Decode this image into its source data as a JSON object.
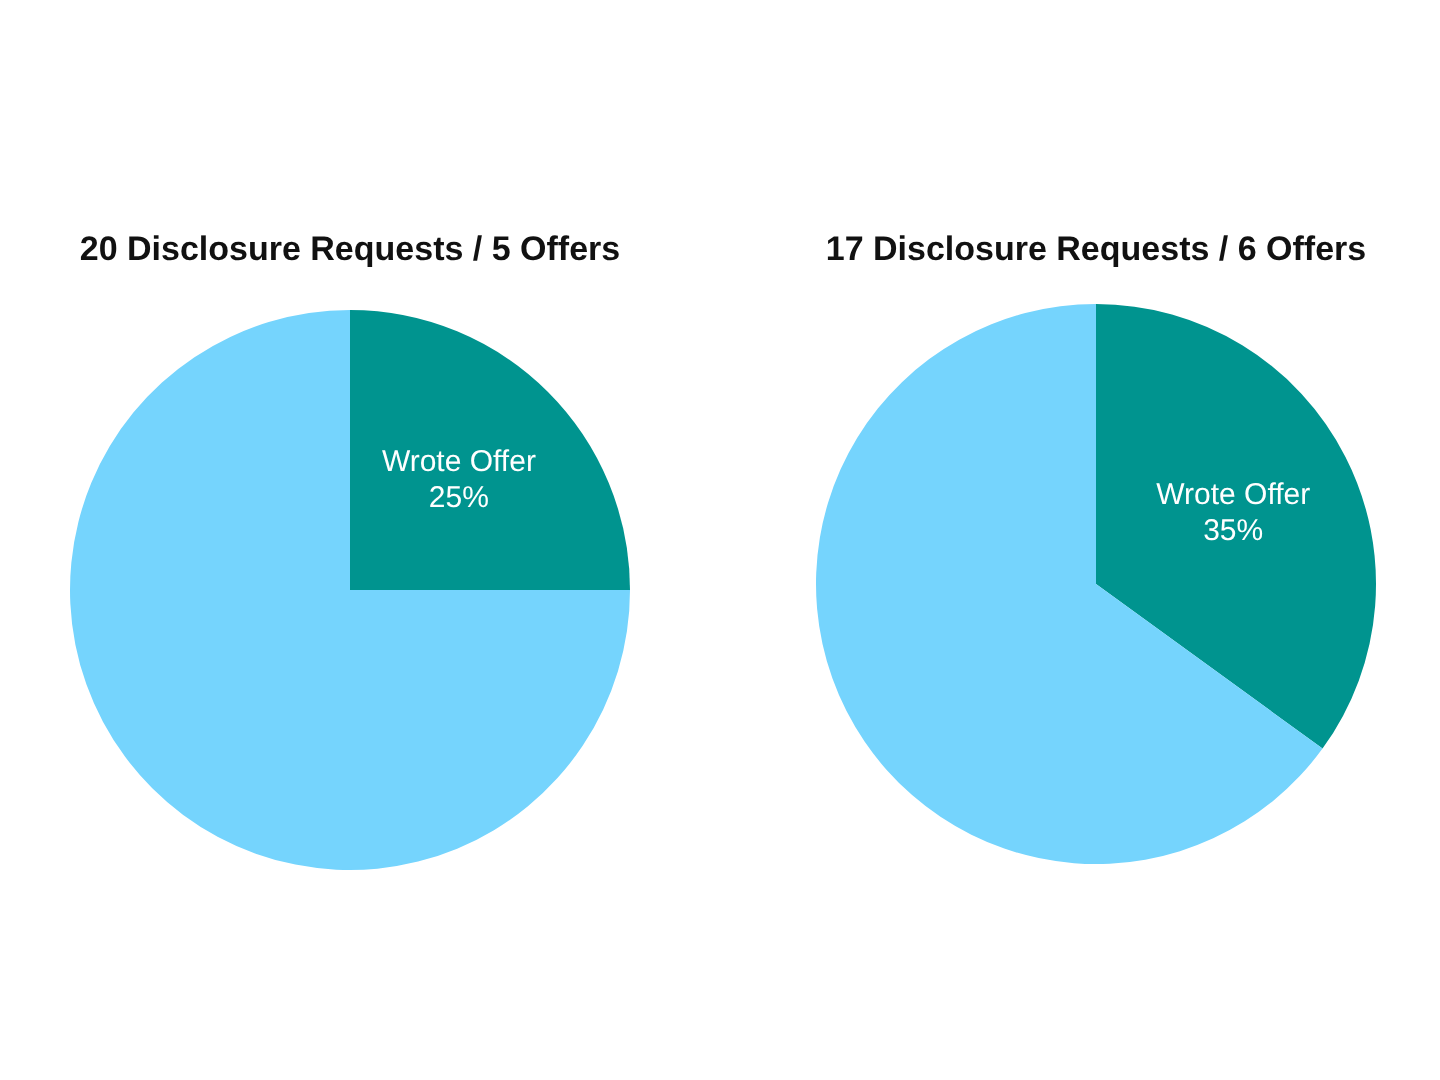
{
  "chart_data": [
    {
      "type": "pie",
      "title": "20 Disclosure Requests / 5 Offers",
      "categories": [
        "Wrote Offer",
        null
      ],
      "values": [
        25,
        75
      ],
      "colors": [
        "#00948f",
        "#75d4fd"
      ],
      "value_labels": [
        "25%",
        null
      ]
    },
    {
      "type": "pie",
      "title": "17 Disclosure Requests / 6 Offers",
      "categories": [
        "Wrote Offer",
        null
      ],
      "values": [
        35,
        65
      ],
      "colors": [
        "#00948f",
        "#75d4fd"
      ],
      "value_labels": [
        "35%",
        null
      ]
    }
  ]
}
